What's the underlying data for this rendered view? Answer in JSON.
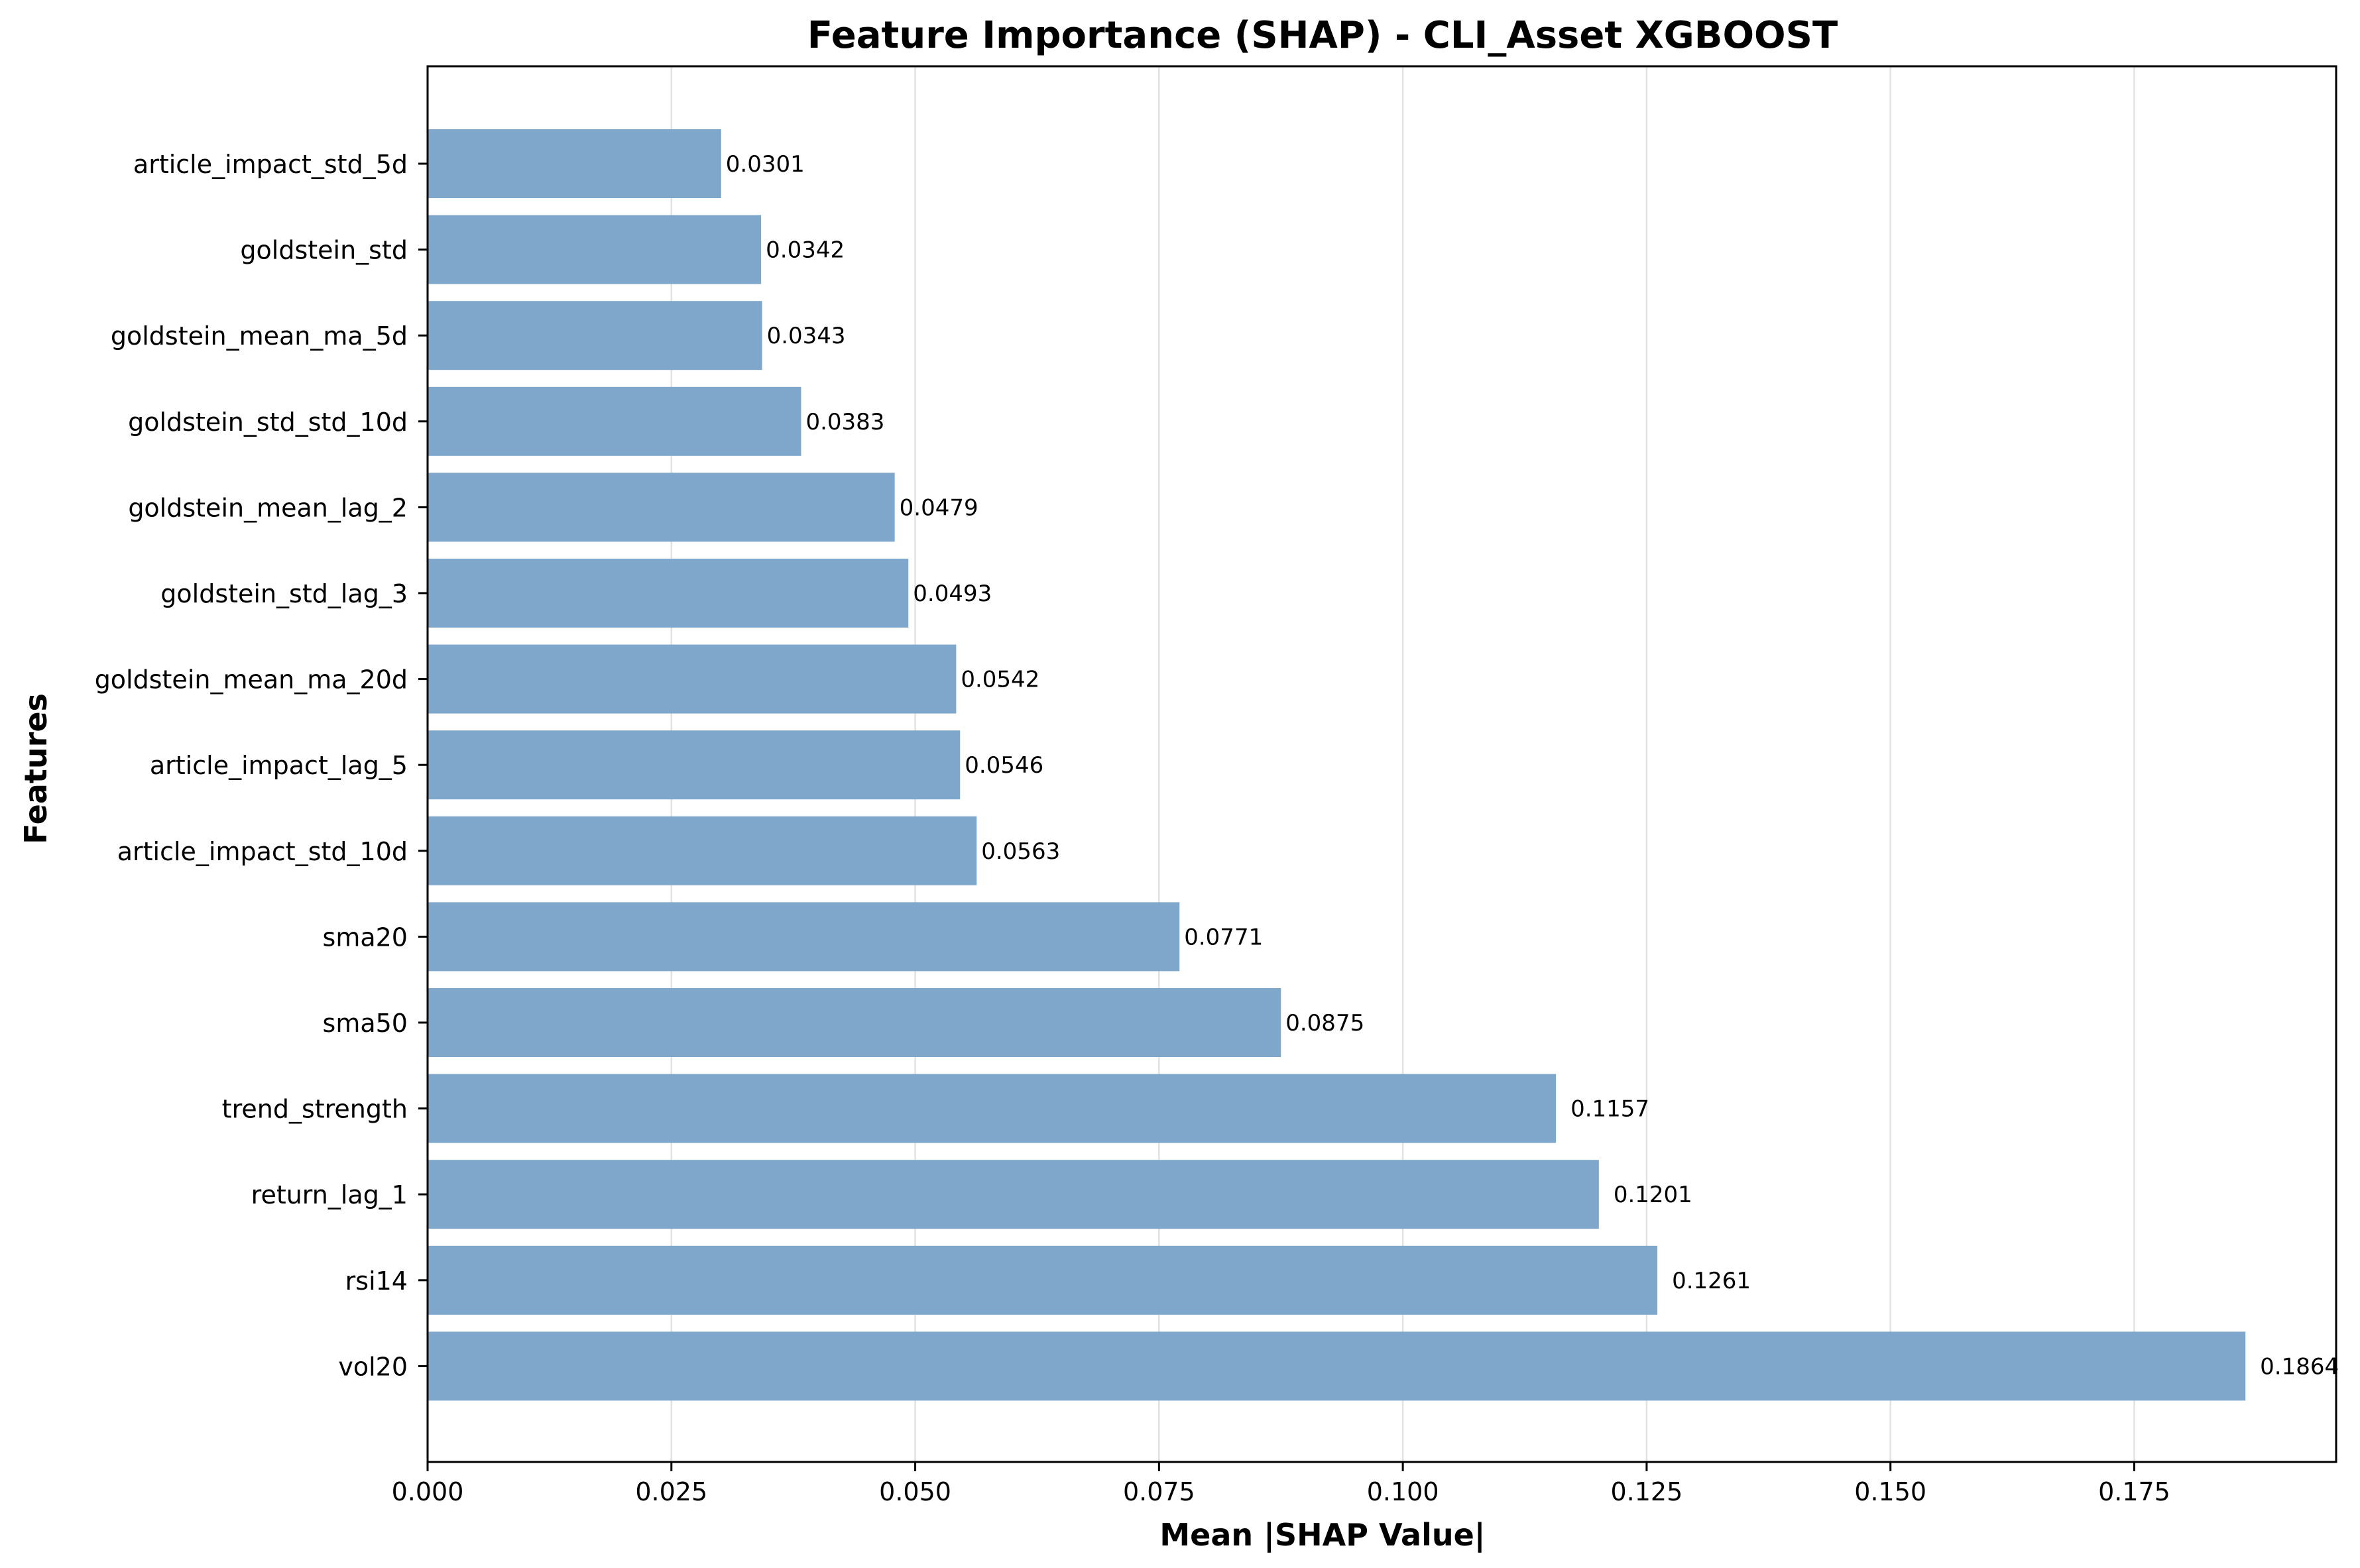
{
  "colors": {
    "bar": "#7fa7cb",
    "grid": "#e2e2e2",
    "axis": "#000000"
  },
  "chart_data": {
    "type": "bar",
    "orientation": "horizontal",
    "title": "Feature Importance (SHAP) - CLI_Asset XGBOOST",
    "xlabel": "Mean |SHAP Value|",
    "ylabel": "Features",
    "xlim": [
      0,
      0.1957
    ],
    "xticks": [
      0.0,
      0.025,
      0.05,
      0.075,
      0.1,
      0.125,
      0.15,
      0.175
    ],
    "xtick_labels": [
      "0.000",
      "0.025",
      "0.050",
      "0.075",
      "0.100",
      "0.125",
      "0.150",
      "0.175"
    ],
    "grid": "vertical",
    "categories": [
      "article_impact_std_5d",
      "goldstein_std",
      "goldstein_mean_ma_5d",
      "goldstein_std_std_10d",
      "goldstein_mean_lag_2",
      "goldstein_std_lag_3",
      "goldstein_mean_ma_20d",
      "article_impact_lag_5",
      "article_impact_std_10d",
      "sma20",
      "sma50",
      "trend_strength",
      "return_lag_1",
      "rsi14",
      "vol20"
    ],
    "values": [
      0.0301,
      0.0342,
      0.0343,
      0.0383,
      0.0479,
      0.0493,
      0.0542,
      0.0546,
      0.0563,
      0.0771,
      0.0875,
      0.1157,
      0.1201,
      0.1261,
      0.1864
    ],
    "value_labels": [
      "0.0301",
      "0.0342",
      "0.0343",
      "0.0383",
      "0.0479",
      "0.0493",
      "0.0542",
      "0.0546",
      "0.0563",
      "0.0771",
      "0.0875",
      "0.1157",
      "0.1201",
      "0.1261",
      "0.1864"
    ]
  }
}
